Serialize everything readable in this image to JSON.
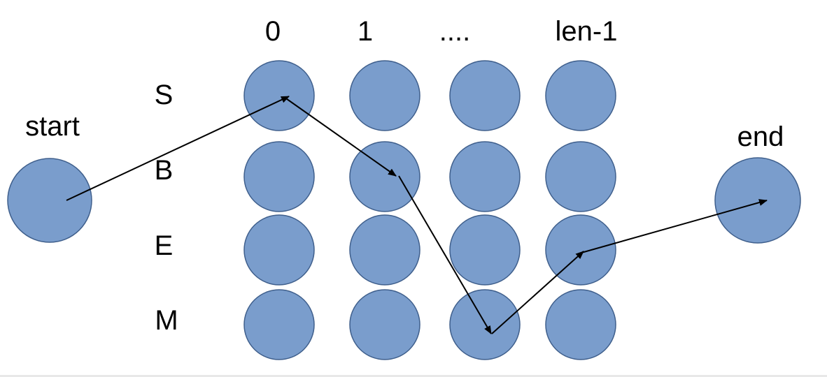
{
  "columns": [
    "0",
    "1",
    "....",
    "len-1"
  ],
  "rows": [
    "S",
    "B",
    "E",
    "M"
  ],
  "start_label": "start",
  "end_label": "end",
  "colors": {
    "node_fill": "#7a9dcc",
    "node_stroke": "#3f5f8c",
    "arrow": "#000000"
  },
  "path": [
    {
      "from": "start",
      "to": "S@0"
    },
    {
      "from": "S@0",
      "to": "B@1"
    },
    {
      "from": "B@1",
      "to": "M@...."
    },
    {
      "from": "M@....",
      "to": "E@len-1"
    },
    {
      "from": "E@len-1",
      "to": "end"
    }
  ]
}
